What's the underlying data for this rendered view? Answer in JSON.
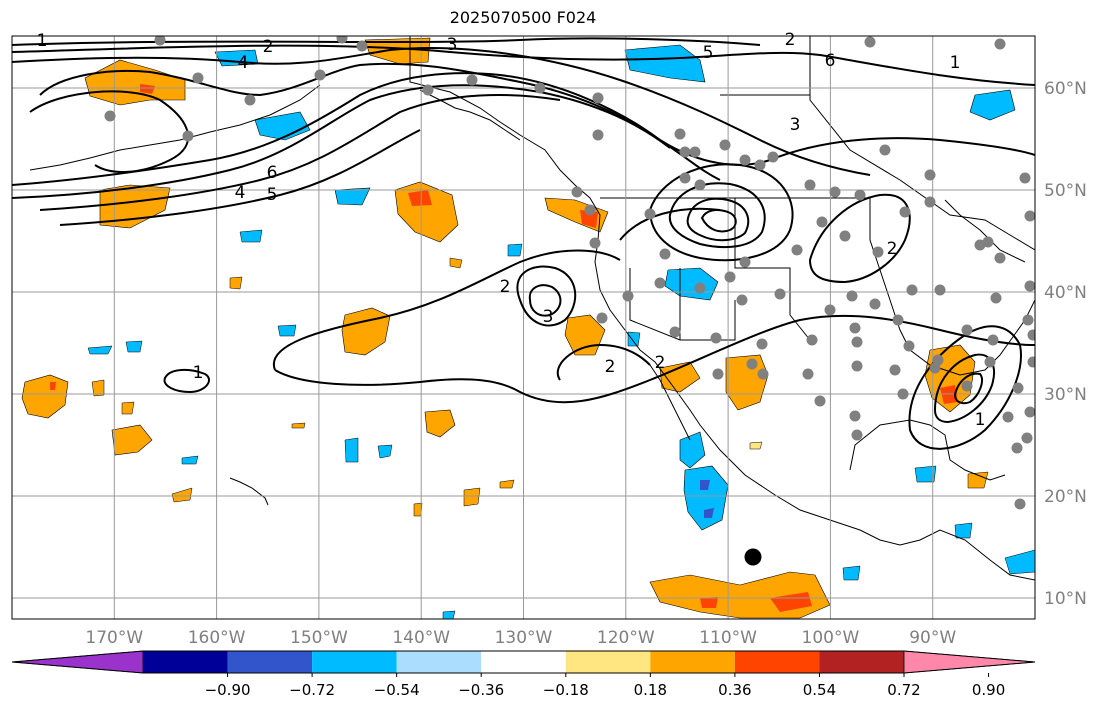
{
  "title": "2025070500 F024",
  "map": {
    "lon_range": [
      -180,
      -80
    ],
    "lat_range": [
      8,
      65
    ],
    "lon_ticks": [
      "170°W",
      "160°W",
      "150°W",
      "140°W",
      "130°W",
      "120°W",
      "110°W",
      "100°W",
      "90°W"
    ],
    "lat_ticks": [
      "60°N",
      "50°N",
      "40°N",
      "30°N",
      "20°N",
      "10°N"
    ],
    "grid": true,
    "tick_label_color": "#808080",
    "contour_labels": [
      "1",
      "2",
      "3",
      "4",
      "5",
      "6",
      "1",
      "2",
      "3",
      "4",
      "5",
      "6",
      "2",
      "3",
      "2",
      "2",
      "1",
      "2",
      "1"
    ],
    "station_marker": "black-dot"
  },
  "colorbar": {
    "ticks": [
      "−0.90",
      "−0.72",
      "−0.54",
      "−0.36",
      "−0.18",
      "0.18",
      "0.36",
      "0.54",
      "0.72",
      "0.90"
    ],
    "colors": [
      "#9933cc",
      "#000099",
      "#3355cc",
      "#00bbff",
      "#aaddff",
      "#ffffff",
      "#ffe680",
      "#ffa500",
      "#ff4400",
      "#b22222",
      "#ff88aa"
    ]
  },
  "colors": {
    "orange": "#ffa500",
    "red": "#ff4400",
    "cyan": "#00bbff",
    "blue": "#3355cc",
    "station": "#808080"
  }
}
